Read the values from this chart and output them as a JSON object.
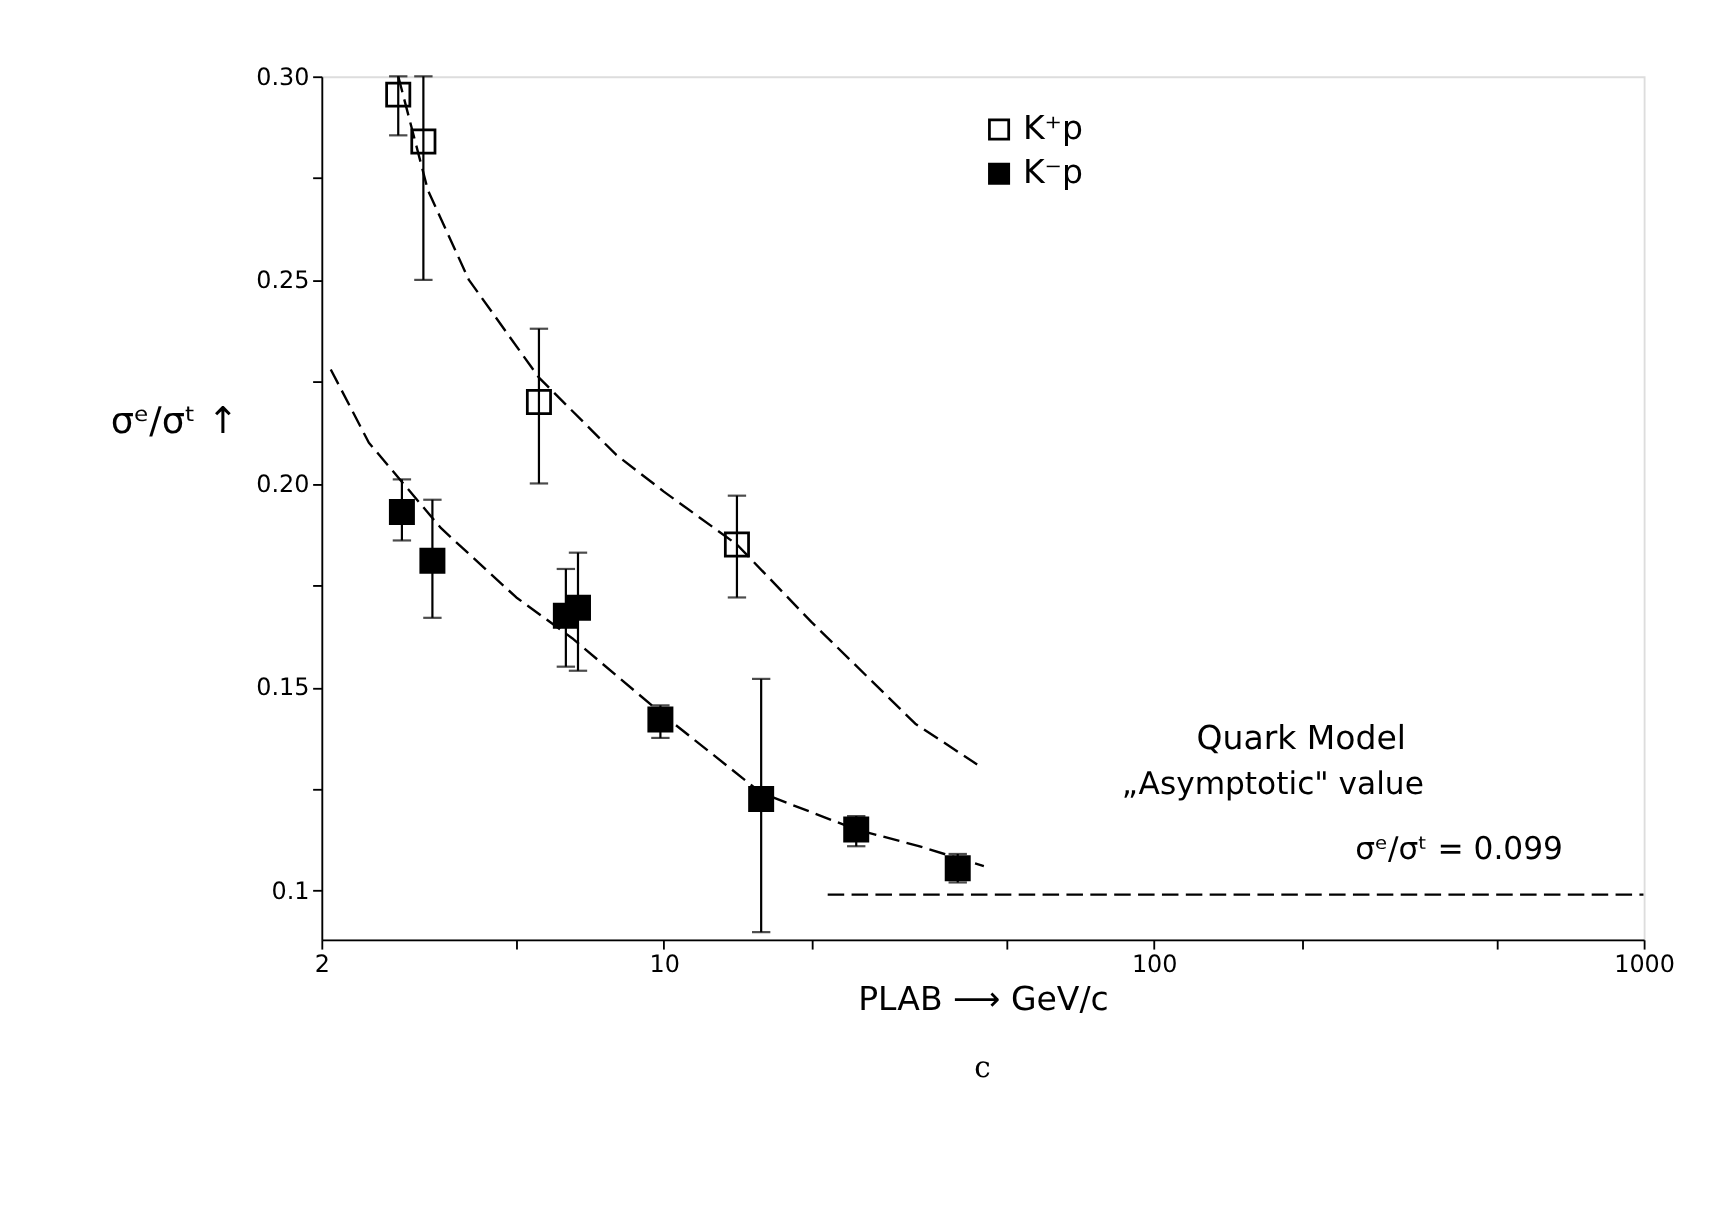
{
  "chart_data": {
    "type": "scatter",
    "xlabel": "PLAB ⟶ GeV/c",
    "ylabel": "σᵉ/σᵗ ↑",
    "annotations": [
      "Quark Model",
      "„Asymptotic\" value",
      "σᵉ/σᵗ = 0.099",
      "c"
    ],
    "log": "x",
    "xlim": [
      2,
      1000
    ],
    "ylim": [
      0.088,
      0.3
    ],
    "xticks": [
      2,
      {
        "value": 5,
        "label": null
      },
      10,
      {
        "value": 20,
        "label": null
      },
      {
        "value": 50,
        "label": null
      },
      100,
      {
        "value": 200,
        "label": null
      },
      {
        "value": 500,
        "label": null
      },
      1000
    ],
    "yticks": [
      0.1,
      {
        "value": 0.125,
        "label": null
      },
      0.15,
      {
        "value": 0.175,
        "label": null
      },
      {
        "value": 0.2,
        "label": "0.20"
      },
      {
        "value": 0.225,
        "label": null
      },
      0.25,
      {
        "value": 0.275,
        "label": null
      },
      {
        "value": 0.3,
        "label": "0.30"
      }
    ],
    "grid": false,
    "legend": "top",
    "series": [
      {
        "name": "K⁺p",
        "color": "#ffffff",
        "marker": "square",
        "x": [
          2.87,
          3.23,
          5.56,
          14.1
        ],
        "values": [
          0.2955,
          0.284,
          0.22,
          0.185
        ],
        "errors": [
          [
            0.2855,
            0.3
          ],
          [
            0.25,
            0.3
          ],
          [
            0.2,
            0.238
          ],
          [
            0.172,
            0.197
          ]
        ]
      },
      {
        "name": "K⁻p",
        "color": "#000000",
        "marker": "square",
        "x": [
          2.92,
          3.37,
          6.31,
          6.68,
          9.84,
          15.8,
          24.7,
          39.8
        ],
        "values": [
          0.193,
          0.181,
          0.1675,
          0.1695,
          0.142,
          0.1225,
          0.115,
          0.1055
        ],
        "errors": [
          [
            0.186,
            0.201
          ],
          [
            0.167,
            0.196
          ],
          [
            0.155,
            0.179
          ],
          [
            0.154,
            0.183
          ],
          [
            0.1375,
            0.1455
          ],
          [
            0.0898,
            0.152
          ],
          [
            0.1109,
            0.1183
          ],
          [
            0.102,
            0.109
          ]
        ]
      },
      {
        "type": "line",
        "line_style": "dashed",
        "color": "#000000",
        "x": [
          2.87,
          3.3,
          4,
          5.56,
          8,
          10,
          14.1,
          20,
          32.6,
          43.6
        ],
        "values": [
          0.3,
          0.272,
          0.25,
          0.226,
          0.207,
          0.198,
          0.185,
          0.166,
          0.141,
          0.131
        ]
      },
      {
        "type": "line",
        "line_style": "dashed",
        "color": "#000000",
        "x": [
          2.09,
          2.5,
          3.51,
          5,
          6.5,
          10,
          15.8,
          24.7,
          33,
          45
        ],
        "values": [
          0.228,
          0.21,
          0.189,
          0.172,
          0.162,
          0.143,
          0.124,
          0.115,
          0.111,
          0.106
        ]
      },
      {
        "type": "line",
        "line_style": "dashed",
        "color": "#000000",
        "x": [
          21.6,
          1000
        ],
        "values": [
          0.099,
          0.099
        ]
      }
    ]
  }
}
